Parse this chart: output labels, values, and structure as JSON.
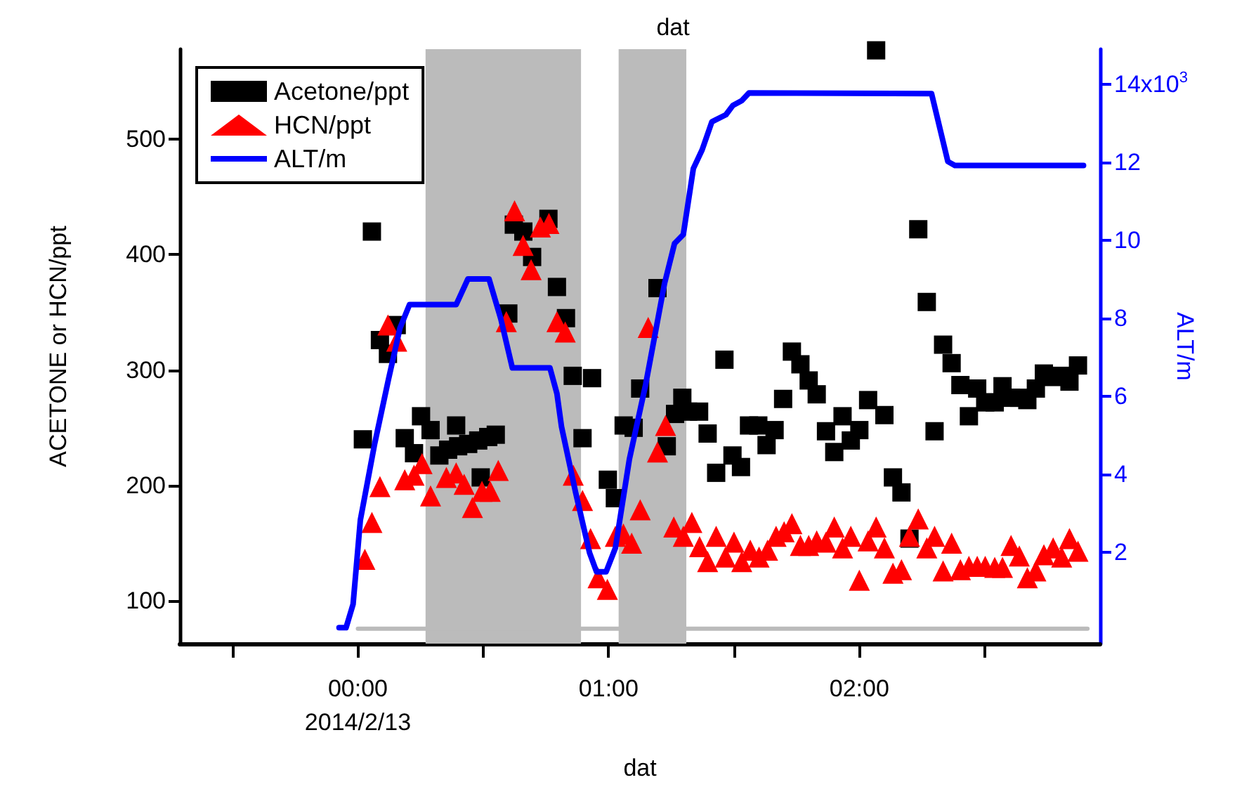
{
  "chart_data": {
    "type": "scatter",
    "title": "dat",
    "xlabel": "dat",
    "ylabel": "ACETONE or HCN/ppt",
    "y2label": "ALT/m",
    "xlim": [
      -0.71,
      2.96
    ],
    "xticks": [
      {
        "value": -0.5,
        "label": null
      },
      {
        "value": 0,
        "label": "00:00\n2014/2/13"
      },
      {
        "value": 0.5,
        "label": null
      },
      {
        "value": 1,
        "label": "01:00"
      },
      {
        "value": 1.5,
        "label": null
      },
      {
        "value": 2,
        "label": "02:00"
      },
      {
        "value": 2.5,
        "label": null
      }
    ],
    "ylim": [
      63,
      578
    ],
    "yticks": [
      100,
      200,
      300,
      400,
      500
    ],
    "y2lim": [
      -0.34,
      14.9
    ],
    "y2ticks": [
      2,
      4,
      6,
      8,
      10,
      12,
      14
    ],
    "annotations": [
      "x10$^{3}$"
    ],
    "grid": false,
    "legend": "top left",
    "bands": [
      {
        "axis": "x",
        "from": 0.27,
        "to": 0.89,
        "color": "#bbbbbb"
      },
      {
        "axis": "x",
        "from": 1.04,
        "to": 1.31,
        "color": "#bbbbbb"
      }
    ],
    "series": [
      {
        "type": "line",
        "color": "#bbbbbb",
        "marker": "none",
        "x": [
          0,
          2.91
        ],
        "values": [
          76,
          76
        ]
      },
      {
        "name": "Acetone/ppt",
        "color": "#000000",
        "marker": "square",
        "x": [
          0.02,
          0.056,
          0.088,
          0.12,
          0.155,
          0.187,
          0.224,
          0.252,
          0.29,
          0.325,
          0.36,
          0.4,
          0.44,
          0.48,
          0.52,
          0.55,
          0.392,
          0.49,
          0.6,
          0.622,
          0.66,
          0.695,
          0.76,
          0.794,
          0.83,
          0.857,
          0.934,
          0.896,
          0.997,
          1.025,
          1.06,
          1.1,
          1.126,
          1.195,
          1.232,
          1.265,
          1.294,
          1.317,
          1.361,
          1.395,
          1.429,
          1.462,
          1.494,
          1.528,
          1.56,
          1.597,
          1.63,
          1.662,
          1.696,
          1.731,
          1.765,
          1.798,
          1.83,
          1.867,
          1.9,
          1.933,
          1.966,
          2.0,
          2.035,
          2.067,
          2.1,
          2.134,
          2.168,
          2.2,
          2.235,
          2.269,
          2.3,
          2.334,
          2.368,
          2.403,
          2.437,
          2.47,
          2.502,
          2.54,
          2.571,
          2.605,
          2.638,
          2.67,
          2.704,
          2.736,
          2.773,
          2.807,
          2.838,
          2.872
        ],
        "values": [
          240,
          420,
          326,
          314,
          339,
          241,
          228,
          260,
          248,
          226,
          231,
          234,
          236,
          239,
          242,
          244,
          252,
          207,
          349,
          426,
          420,
          398,
          431,
          372,
          345,
          295,
          293,
          241,
          205,
          189,
          252,
          250,
          284,
          371,
          234,
          262,
          276,
          264,
          264,
          245,
          211,
          309,
          226,
          216,
          252,
          252,
          235,
          248,
          275,
          316,
          305,
          291,
          279,
          247,
          229,
          260,
          239,
          248,
          274,
          577,
          261,
          207,
          194,
          154,
          422,
          359,
          247,
          322,
          306,
          287,
          260,
          284,
          272,
          272,
          286,
          276,
          276,
          274,
          284,
          297,
          294,
          295,
          290,
          304
        ]
      },
      {
        "name": "HCN/ppt",
        "color": "#ff0000",
        "marker": "triangle",
        "x": [
          0.028,
          0.056,
          0.088,
          0.12,
          0.155,
          0.187,
          0.224,
          0.256,
          0.29,
          0.353,
          0.392,
          0.424,
          0.457,
          0.495,
          0.528,
          0.56,
          0.592,
          0.625,
          0.659,
          0.691,
          0.728,
          0.762,
          0.794,
          0.827,
          0.859,
          0.896,
          0.928,
          0.958,
          0.995,
          1.027,
          1.059,
          1.092,
          1.126,
          1.158,
          1.195,
          1.227,
          1.26,
          1.298,
          1.332,
          1.363,
          1.395,
          1.429,
          1.466,
          1.5,
          1.531,
          1.565,
          1.6,
          1.634,
          1.668,
          1.7,
          1.731,
          1.765,
          1.798,
          1.83,
          1.867,
          1.9,
          1.933,
          1.966,
          2.0,
          2.035,
          2.067,
          2.1,
          2.134,
          2.168,
          2.2,
          2.235,
          2.269,
          2.3,
          2.334,
          2.368,
          2.403,
          2.437,
          2.47,
          2.502,
          2.54,
          2.571,
          2.605,
          2.638,
          2.67,
          2.704,
          2.736,
          2.773,
          2.807,
          2.838,
          2.872
        ],
        "values": [
          136,
          168,
          199,
          339,
          325,
          205,
          209,
          219,
          191,
          207,
          211,
          201,
          181,
          195,
          195,
          213,
          342,
          438,
          408,
          387,
          424,
          427,
          342,
          333,
          209,
          187,
          154,
          120,
          110,
          156,
          158,
          150,
          179,
          337,
          229,
          252,
          164,
          156,
          168,
          147,
          134,
          156,
          138,
          151,
          134,
          144,
          138,
          144,
          156,
          160,
          167,
          148,
          148,
          152,
          151,
          164,
          146,
          156,
          118,
          152,
          164,
          146,
          124,
          127,
          156,
          171,
          146,
          156,
          126,
          150,
          127,
          130,
          130,
          130,
          129,
          129,
          148,
          139,
          120,
          126,
          140,
          146,
          138,
          154,
          143
        ]
      },
      {
        "name": "ALT/m",
        "type": "line",
        "axis": "y2",
        "color": "#0000ff",
        "marker": "none",
        "line_style": "solid",
        "x": [
          -0.075,
          -0.047,
          -0.019,
          0.01,
          0.066,
          0.122,
          0.168,
          0.206,
          0.392,
          0.439,
          0.523,
          0.57,
          0.616,
          0.766,
          0.794,
          0.812,
          0.868,
          0.924,
          0.952,
          0.99,
          1.027,
          1.083,
          1.148,
          1.223,
          1.263,
          1.298,
          1.338,
          1.373,
          1.412,
          1.468,
          1.496,
          1.531,
          1.56,
          2.288,
          2.353,
          2.381,
          2.894
        ],
        "values": [
          0.07,
          0.07,
          0.67,
          2.83,
          4.75,
          6.43,
          7.75,
          8.35,
          8.35,
          9.01,
          9.01,
          7.99,
          6.73,
          6.73,
          6.07,
          5.23,
          3.55,
          1.99,
          1.5,
          1.5,
          2.11,
          4.39,
          6.31,
          8.89,
          9.92,
          10.15,
          11.84,
          12.32,
          13.04,
          13.22,
          13.46,
          13.58,
          13.78,
          13.76,
          12.02,
          11.92,
          11.92
        ]
      }
    ]
  }
}
